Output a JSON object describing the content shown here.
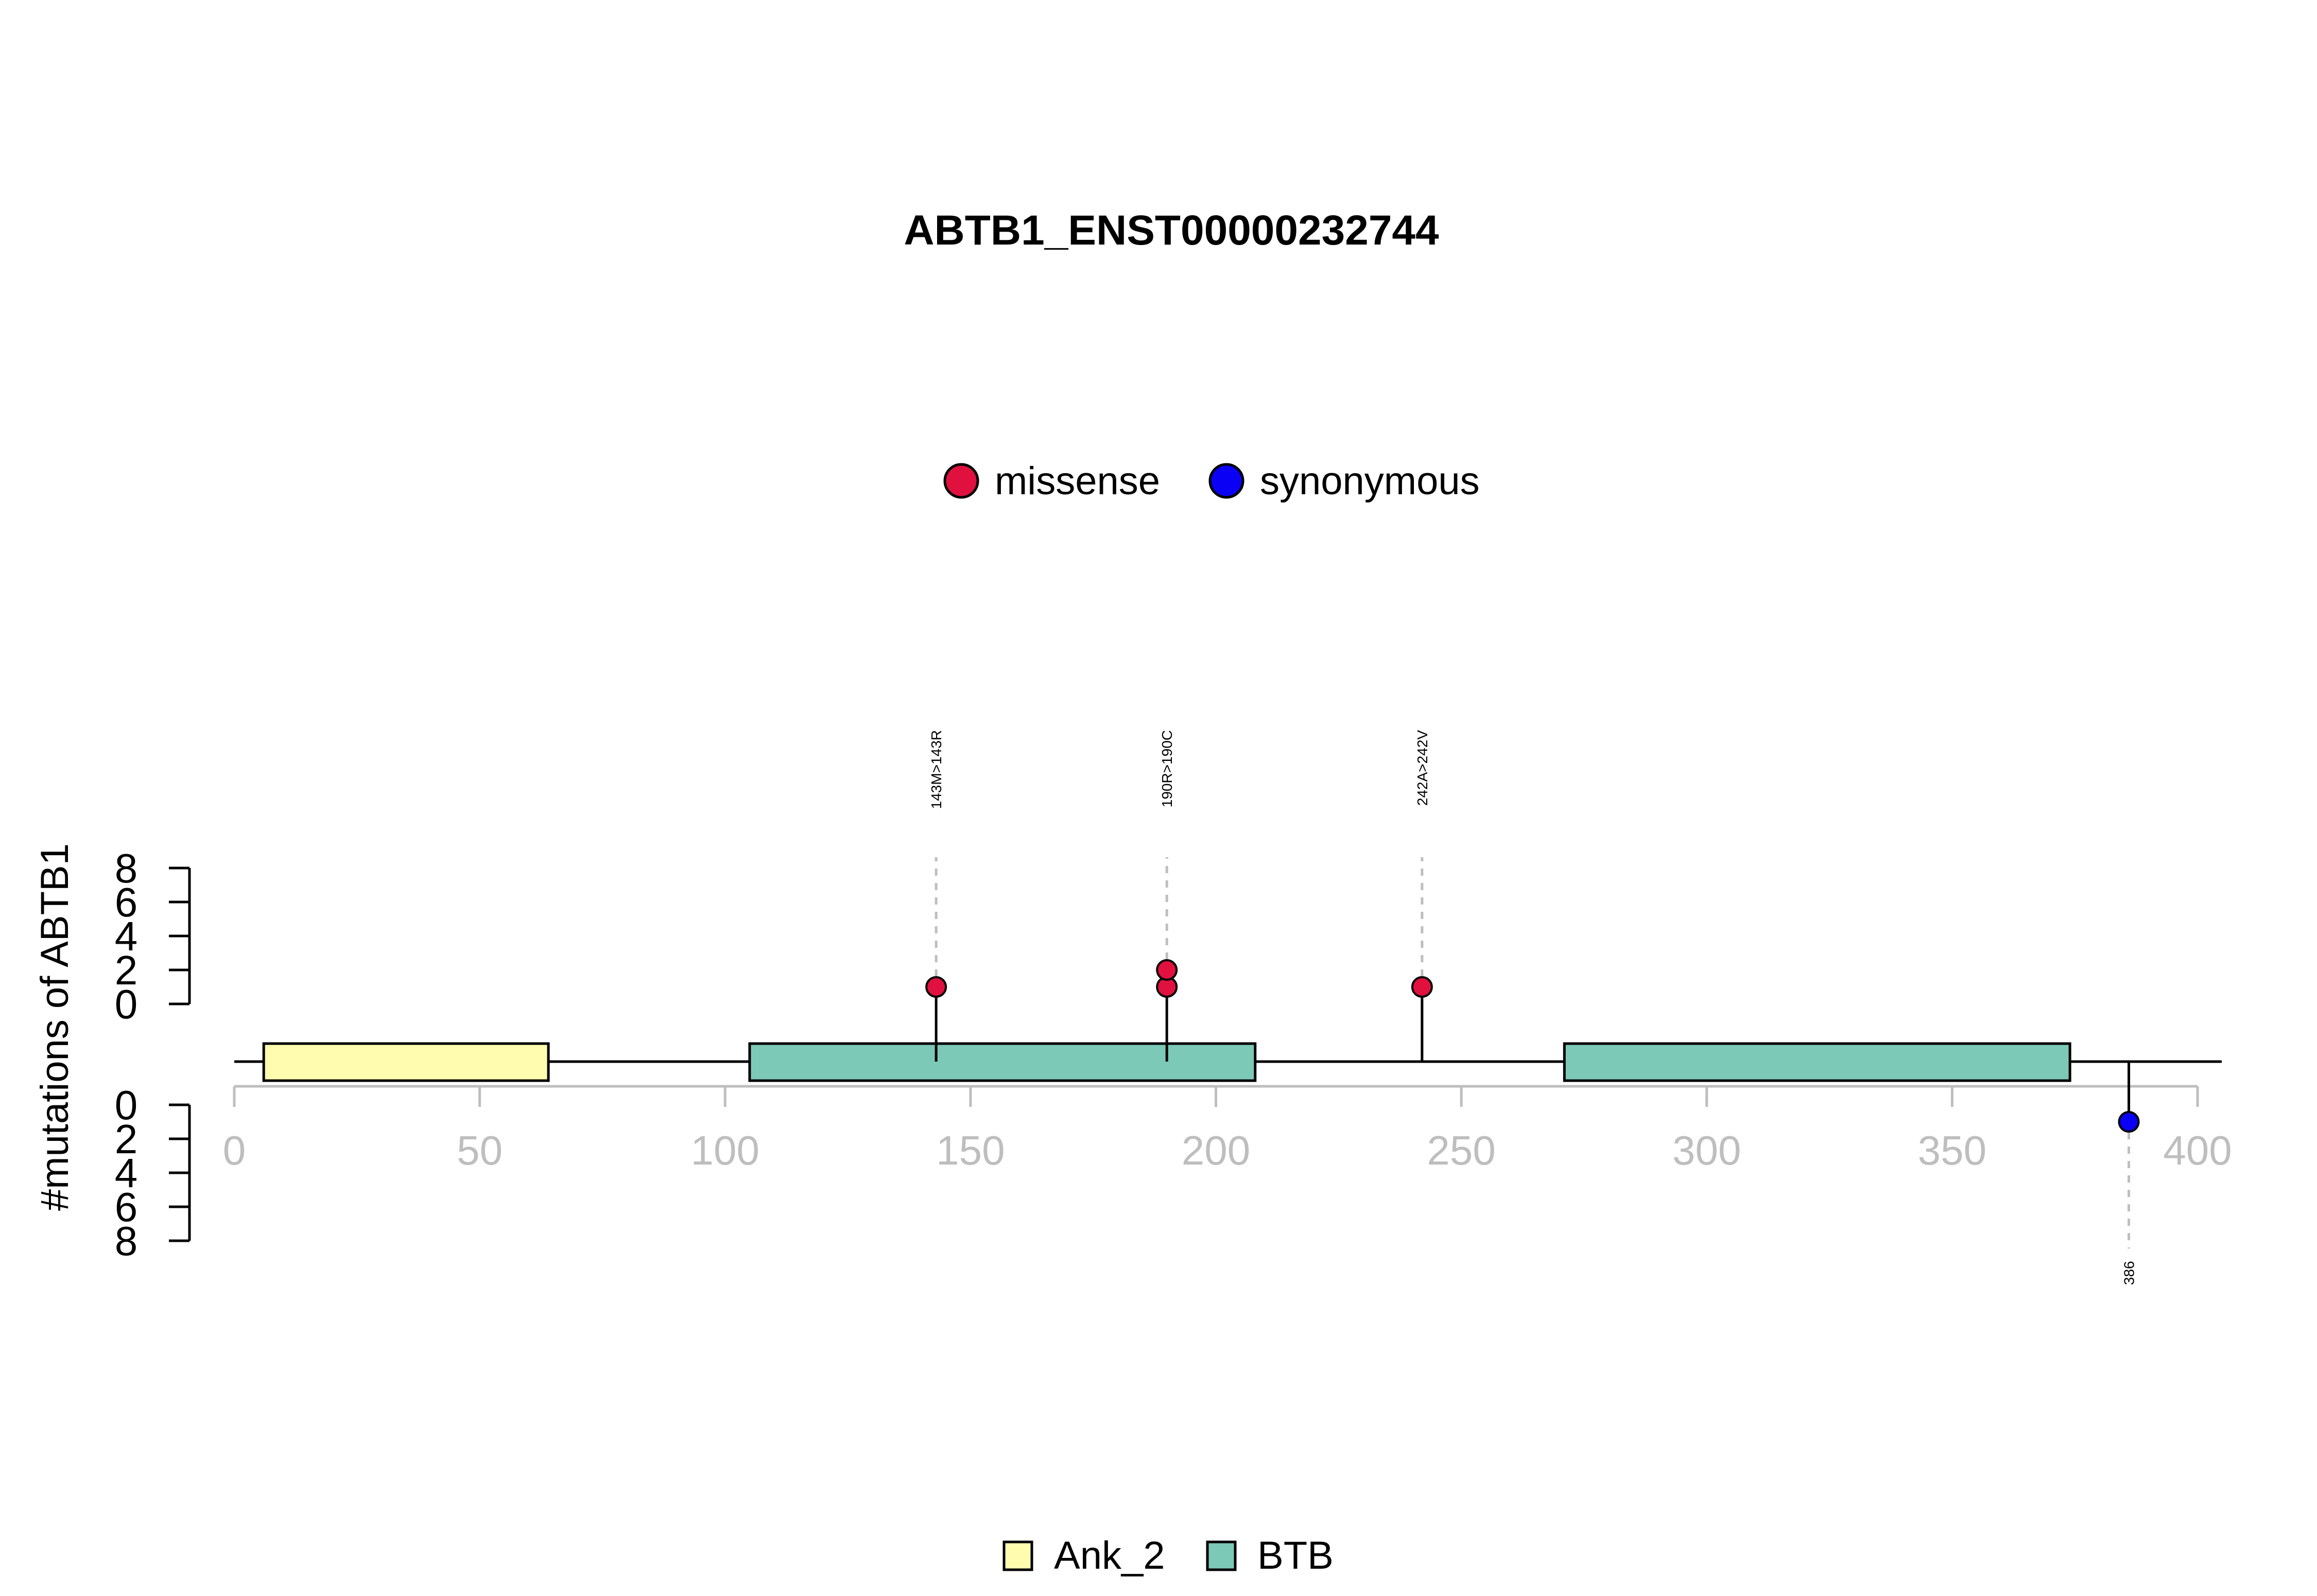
{
  "chart_data": {
    "type": "lollipop",
    "title": "ABTB1_ENST00000232744",
    "ylabel": "#mutations of ABTB1",
    "xlabel": "",
    "xlim": [
      0,
      400
    ],
    "x_ticks": [
      0,
      50,
      100,
      150,
      200,
      250,
      300,
      350,
      400
    ],
    "y_ticks_upper": [
      0,
      2,
      4,
      6,
      8
    ],
    "y_ticks_lower": [
      0,
      2,
      4,
      6,
      8
    ],
    "grid": false,
    "mutation_legend": [
      {
        "label": "missense",
        "color": "#E0103F"
      },
      {
        "label": "synonymous",
        "color": "#0A00F5"
      }
    ],
    "domain_legend": [
      {
        "label": "Ank_2",
        "color": "#FFFCB0"
      },
      {
        "label": "BTB",
        "color": "#7CC9B7"
      }
    ],
    "domains": [
      {
        "name": "Ank_2",
        "start": 6,
        "end": 64,
        "color": "#FFFCB0"
      },
      {
        "name": "BTB",
        "start": 105,
        "end": 208,
        "color": "#7CC9B7"
      },
      {
        "name": "BTB",
        "start": 271,
        "end": 374,
        "color": "#7CC9B7"
      }
    ],
    "protein_length": 400,
    "mutations": [
      {
        "position": 143,
        "count": 1,
        "type": "missense",
        "label": "143M>143R",
        "side": "upper"
      },
      {
        "position": 190,
        "count": 2,
        "type": "missense",
        "label": "190R>190C",
        "side": "upper"
      },
      {
        "position": 242,
        "count": 1,
        "type": "missense",
        "label": "242A>242V",
        "side": "upper"
      },
      {
        "position": 386,
        "count": 1,
        "type": "synonymous",
        "label": "386",
        "side": "lower"
      }
    ],
    "colors": {
      "missense": "#E0103F",
      "synonymous": "#0A00F5",
      "axis_grey": "#BEBEBE",
      "guide_grey": "#BEBEBE"
    }
  }
}
